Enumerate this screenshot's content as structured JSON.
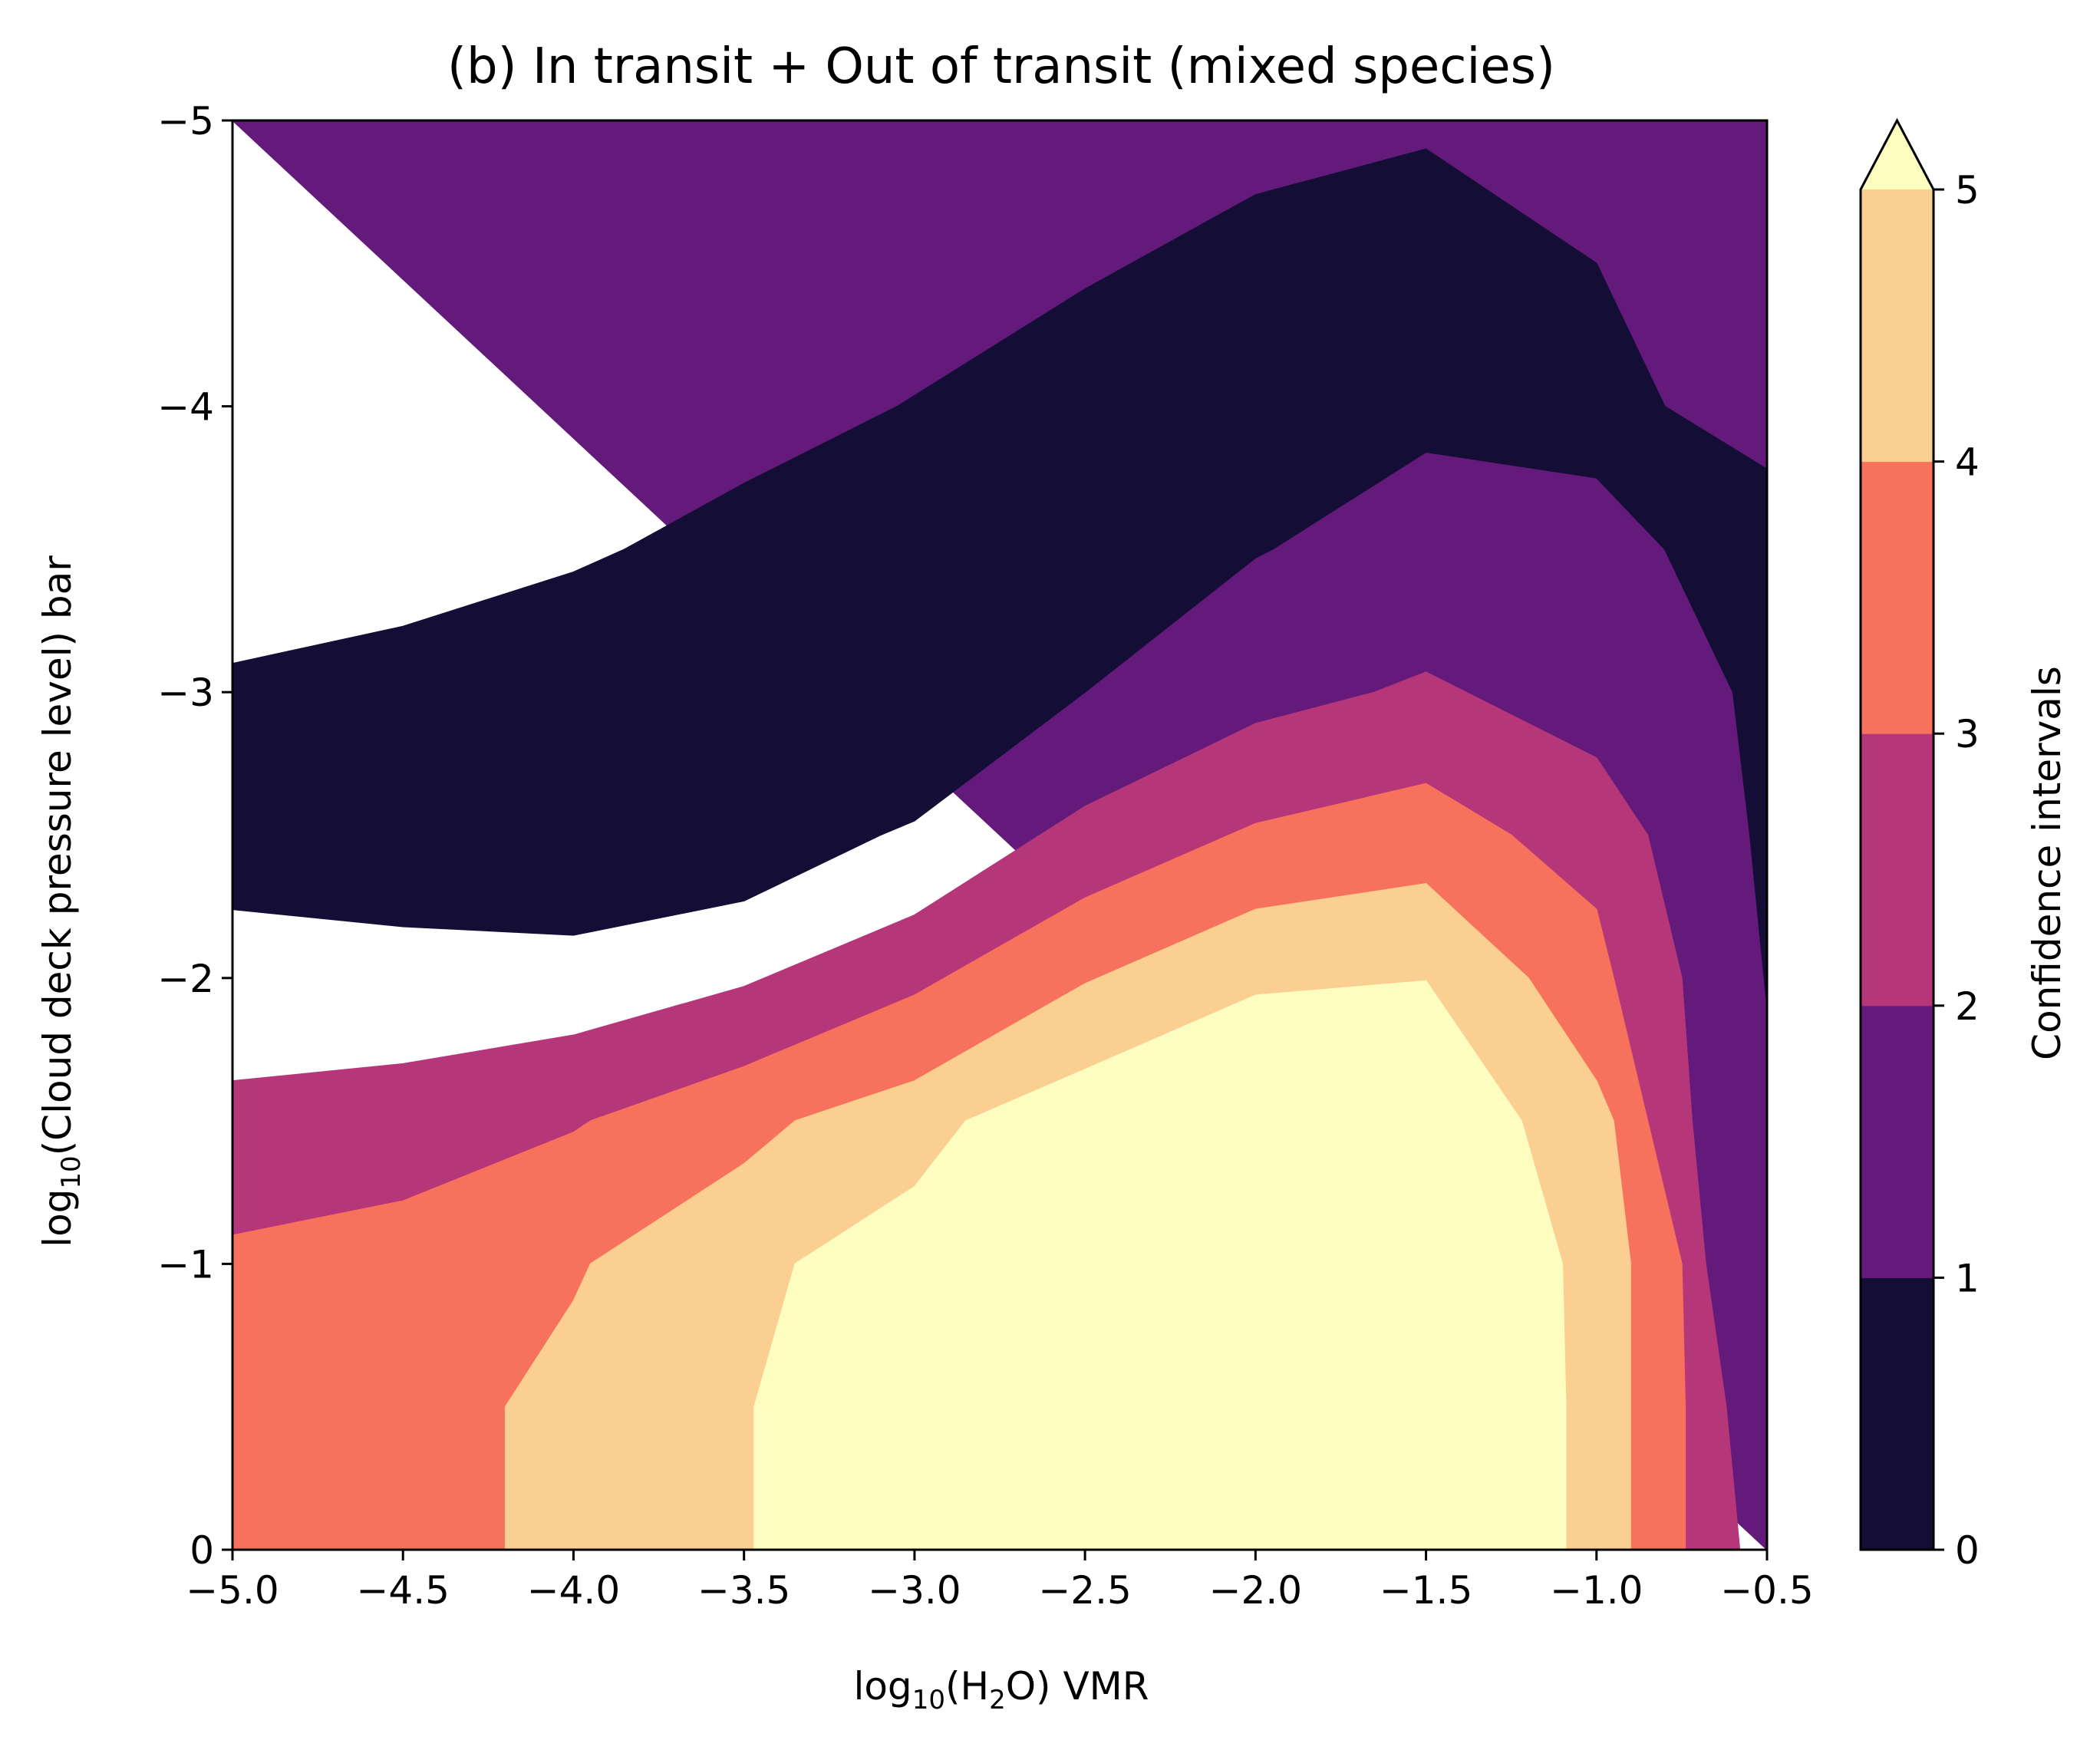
{
  "chart_data": {
    "type": "contourf",
    "title": "(b) In transit + Out of transit (mixed species)",
    "xlabel": {
      "prefix": "log",
      "sub": "10",
      "middle": "(H",
      "sub2": "2",
      "suffix": "O) VMR"
    },
    "ylabel": {
      "prefix": "log",
      "sub": "10",
      "suffix": "(Cloud deck pressure level) bar"
    },
    "xlim": [
      -5.0,
      -0.5
    ],
    "ylim": [
      0,
      -5
    ],
    "xticks": [
      -5.0,
      -4.5,
      -4.0,
      -3.5,
      -3.0,
      -2.5,
      -2.0,
      -1.5,
      -1.0,
      -0.5
    ],
    "xtick_labels": [
      "−5.0",
      "−4.5",
      "−4.0",
      "−3.5",
      "−3.0",
      "−2.5",
      "−2.0",
      "−1.5",
      "−1.0",
      "−0.5"
    ],
    "yticks": [
      0,
      -1,
      -2,
      -3,
      -4,
      -5
    ],
    "ytick_labels": [
      "0",
      "−1",
      "−2",
      "−3",
      "−4",
      "−5"
    ],
    "colorbar": {
      "label": "Confidence intervals",
      "levels": [
        0,
        1,
        2,
        3,
        4,
        5
      ],
      "tick_labels": [
        "0",
        "1",
        "2",
        "3",
        "4",
        "5"
      ],
      "colors": [
        "#140e36",
        "#641a7b",
        "#b63779",
        "#f6725c",
        "#fbce91",
        "#fcfdbf"
      ],
      "extend": "max"
    },
    "regions": [
      {
        "level": "1-2",
        "color": "#641a7b",
        "boundary": [
          [
            -5.0,
            -5.0
          ],
          [
            -0.5,
            -5.0
          ],
          [
            -0.5,
            0
          ]
        ]
      },
      {
        "level": "0-1",
        "color": "#140e36",
        "boundary": [
          [
            -5.0,
            -3.1
          ],
          [
            -4.5,
            -3.23
          ],
          [
            -4.0,
            -3.42
          ],
          [
            -3.85,
            -3.5
          ],
          [
            -3.5,
            -3.73
          ],
          [
            -3.05,
            -4.0
          ],
          [
            -2.5,
            -4.41
          ],
          [
            -2.0,
            -4.74
          ],
          [
            -1.5,
            -4.9
          ],
          [
            -1.0,
            -4.5
          ],
          [
            -0.8,
            -4.0
          ],
          [
            -0.5,
            -3.78
          ],
          [
            -0.5,
            -1.9
          ],
          [
            -0.55,
            -2.5
          ],
          [
            -0.6,
            -3.0
          ],
          [
            -0.8,
            -3.5
          ],
          [
            -1.0,
            -3.75
          ],
          [
            -1.5,
            -3.84
          ],
          [
            -1.95,
            -3.5
          ],
          [
            -2.0,
            -3.47
          ],
          [
            -2.5,
            -3.0
          ],
          [
            -3.0,
            -2.55
          ],
          [
            -3.1,
            -2.5
          ],
          [
            -3.5,
            -2.27
          ],
          [
            -4.0,
            -2.15
          ],
          [
            -4.5,
            -2.18
          ],
          [
            -5.0,
            -2.24
          ]
        ]
      },
      {
        "level": "2-3",
        "color": "#b63779",
        "boundary": [
          [
            -5.0,
            -1.64
          ],
          [
            -4.5,
            -1.7
          ],
          [
            -4.0,
            -1.8
          ],
          [
            -3.5,
            -1.97
          ],
          [
            -3.0,
            -2.22
          ],
          [
            -2.5,
            -2.6
          ],
          [
            -2.0,
            -2.89
          ],
          [
            -1.65,
            -3.0
          ],
          [
            -1.5,
            -3.07
          ],
          [
            -1.0,
            -2.77
          ],
          [
            -0.85,
            -2.5
          ],
          [
            -0.75,
            -2.0
          ],
          [
            -0.72,
            -1.5
          ],
          [
            -0.68,
            -1.0
          ],
          [
            -0.62,
            -0.5
          ],
          [
            -0.58,
            0
          ],
          [
            -5.0,
            0
          ]
        ]
      },
      {
        "level": "3-4",
        "color": "#f6725c",
        "boundary": [
          [
            -5.0,
            -1.1
          ],
          [
            -4.5,
            -1.22
          ],
          [
            -4.0,
            -1.46
          ],
          [
            -3.95,
            -1.5
          ],
          [
            -3.5,
            -1.69
          ],
          [
            -3.0,
            -1.94
          ],
          [
            -2.5,
            -2.28
          ],
          [
            -2.0,
            -2.54
          ],
          [
            -1.5,
            -2.68
          ],
          [
            -1.25,
            -2.5
          ],
          [
            -1.0,
            -2.24
          ],
          [
            -0.95,
            -2.0
          ],
          [
            -0.85,
            -1.5
          ],
          [
            -0.75,
            -1.0
          ],
          [
            -0.74,
            -0.5
          ],
          [
            -0.74,
            0
          ],
          [
            -5.0,
            0
          ]
        ]
      },
      {
        "level": "4-5",
        "color": "#fbce91",
        "boundary": [
          [
            -4.2,
            0
          ],
          [
            -4.2,
            -0.5
          ],
          [
            -4.0,
            -0.87
          ],
          [
            -3.95,
            -1.0
          ],
          [
            -3.5,
            -1.35
          ],
          [
            -3.35,
            -1.5
          ],
          [
            -3.0,
            -1.64
          ],
          [
            -2.5,
            -1.98
          ],
          [
            -2.0,
            -2.24
          ],
          [
            -1.5,
            -2.33
          ],
          [
            -1.2,
            -2.0
          ],
          [
            -1.0,
            -1.64
          ],
          [
            -0.95,
            -1.5
          ],
          [
            -0.9,
            -1.0
          ],
          [
            -0.9,
            -0.5
          ],
          [
            -0.9,
            0
          ]
        ]
      },
      {
        "level": ">5",
        "color": "#fcfdbf",
        "boundary": [
          [
            -3.47,
            0
          ],
          [
            -3.47,
            -0.5
          ],
          [
            -3.35,
            -1.0
          ],
          [
            -3.0,
            -1.27
          ],
          [
            -2.85,
            -1.5
          ],
          [
            -2.5,
            -1.68
          ],
          [
            -2.0,
            -1.94
          ],
          [
            -1.5,
            -1.99
          ],
          [
            -1.22,
            -1.5
          ],
          [
            -1.1,
            -1.0
          ],
          [
            -1.09,
            -0.5
          ],
          [
            -1.09,
            0
          ]
        ]
      }
    ]
  }
}
